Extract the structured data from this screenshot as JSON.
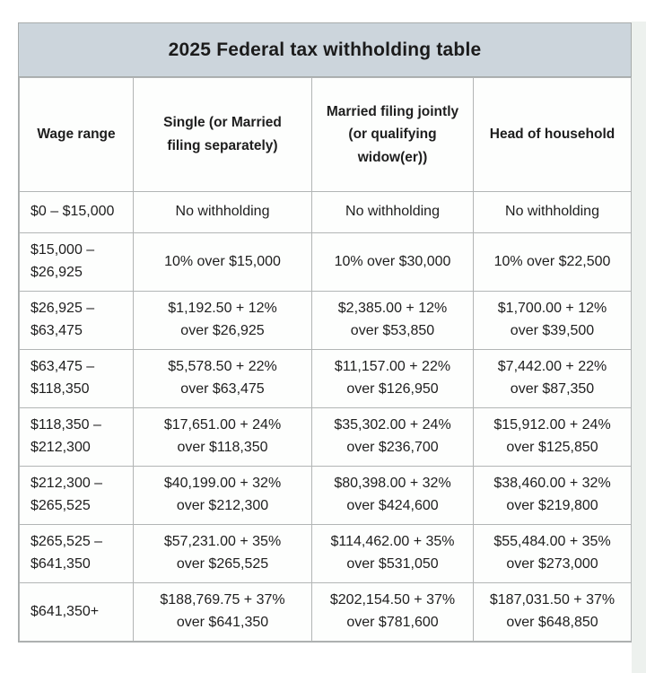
{
  "title": "2025 Federal tax withholding table",
  "colors": {
    "title_background": "#ccd5dc",
    "border": "#b2b5b5",
    "cell_background": "#fdfdfd",
    "text": "#1e1e1e"
  },
  "chart_data": {
    "type": "table",
    "title": "2025 Federal tax withholding table",
    "columns": [
      "Wage range",
      "Single (or Married\nfiling separately)",
      "Married filing jointly\n(or qualifying\nwidow(er))",
      "Head of household"
    ],
    "rows": [
      [
        "$0 – $15,000",
        "No withholding",
        "No withholding",
        "No withholding"
      ],
      [
        "$15,000 –\n$26,925",
        "10% over $15,000",
        "10% over $30,000",
        "10% over $22,500"
      ],
      [
        "$26,925 –\n$63,475",
        "$1,192.50 + 12%\nover $26,925",
        "$2,385.00 + 12%\nover $53,850",
        "$1,700.00 + 12%\nover $39,500"
      ],
      [
        "$63,475 –\n$118,350",
        "$5,578.50 + 22%\nover $63,475",
        "$11,157.00 + 22%\nover $126,950",
        "$7,442.00 + 22%\nover $87,350"
      ],
      [
        "$118,350 –\n$212,300",
        "$17,651.00 + 24%\nover $118,350",
        "$35,302.00 + 24%\nover $236,700",
        "$15,912.00 + 24%\nover $125,850"
      ],
      [
        "$212,300 –\n$265,525",
        "$40,199.00 + 32%\nover $212,300",
        "$80,398.00 + 32%\nover $424,600",
        "$38,460.00 + 32%\nover $219,800"
      ],
      [
        "$265,525 –\n$641,350",
        "$57,231.00 + 35%\nover $265,525",
        "$114,462.00 + 35%\nover $531,050",
        "$55,484.00 + 35%\nover $273,000"
      ],
      [
        "$641,350+",
        "$188,769.75 + 37%\nover $641,350",
        "$202,154.50 + 37%\nover $781,600",
        "$187,031.50 + 37%\nover $648,850"
      ]
    ]
  }
}
